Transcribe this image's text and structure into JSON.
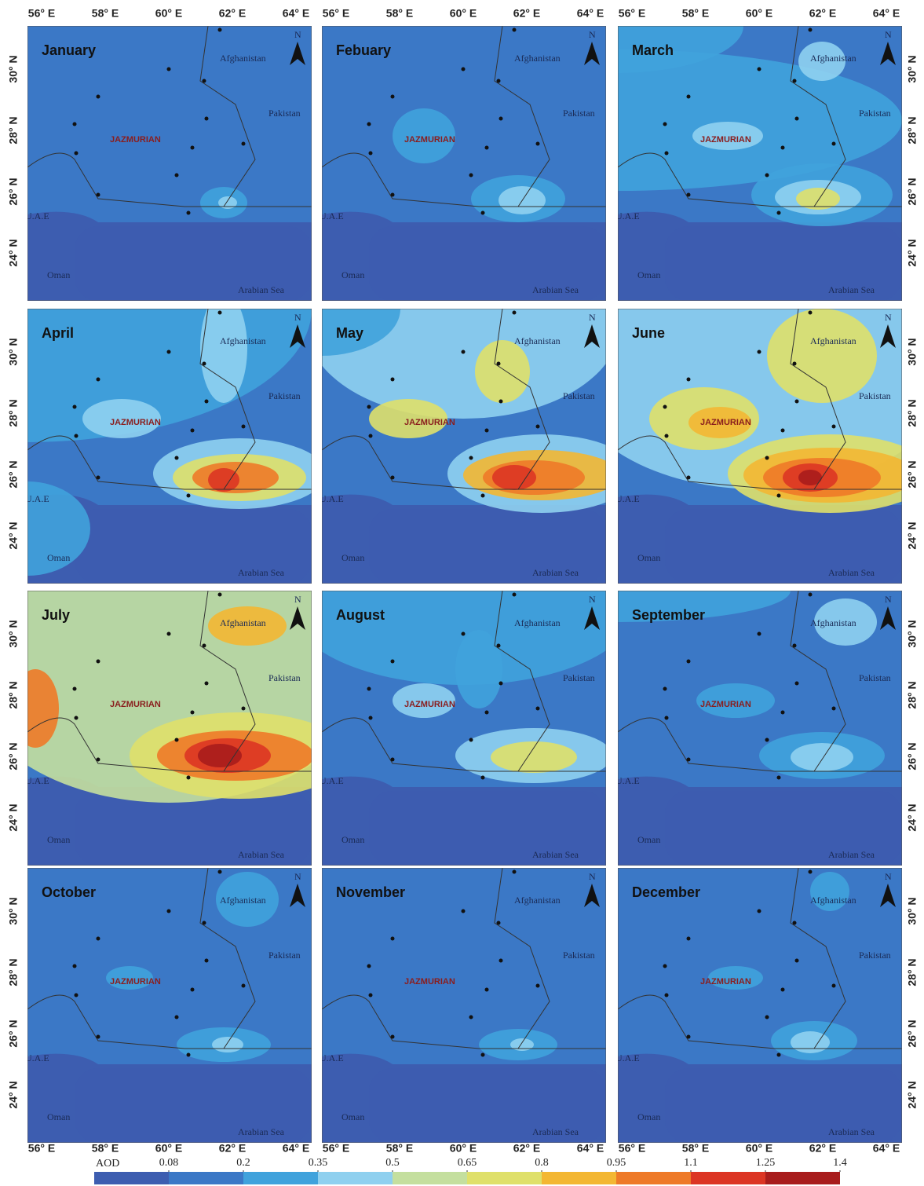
{
  "months": [
    "January",
    "Febuary",
    "March",
    "April",
    "May",
    "June",
    "July",
    "August",
    "September",
    "October",
    "November",
    "December"
  ],
  "places": {
    "afghanistan": "Afghanistan",
    "pakistan": "Pakistan",
    "jazmurian": "JAZMURIAN",
    "uae": "U.A.E",
    "oman": "Oman",
    "arabian_sea": "Arabian Sea",
    "north": "N"
  },
  "x_labels": [
    "56° E",
    "58° E",
    "60° E",
    "62° E",
    "64° E"
  ],
  "y_labels": [
    "30° N",
    "28° N",
    "26° N",
    "24° N"
  ],
  "legend": {
    "title": "AOD",
    "ticks": [
      0.08,
      0.2,
      0.35,
      0.5,
      0.65,
      0.8,
      0.95,
      1.1,
      1.25,
      1.4
    ],
    "colors": [
      "#3d5db0",
      "#3b78c6",
      "#40a2dc",
      "#8fd0ef",
      "#c4df9e",
      "#dfe06a",
      "#f3b733",
      "#ee7a28",
      "#dc3524",
      "#a81c1c"
    ]
  }
}
